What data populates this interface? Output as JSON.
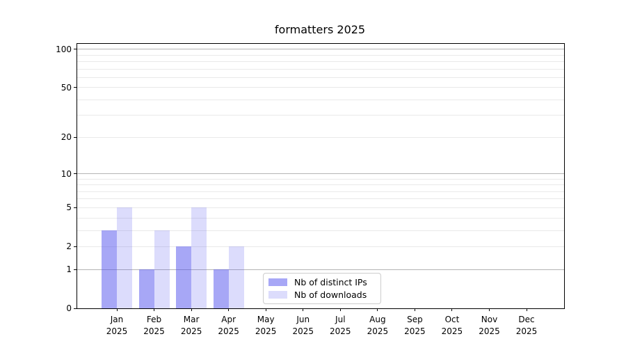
{
  "title": "formatters 2025",
  "colors": {
    "background": "#ffffff",
    "spine": "#000000",
    "text": "#000000",
    "grid_major": "#b4b4b4",
    "grid_minor": "#e9e9e9",
    "legend_border": "#cccccc",
    "bar_ips_fill": "rgba(80,80,238,0.5)",
    "bar_downloads_fill": "rgba(80,80,238,0.2)"
  },
  "chart_data": {
    "type": "bar",
    "title": "formatters 2025",
    "categories": [
      "Jan",
      "Feb",
      "Mar",
      "Apr",
      "May",
      "Jun",
      "Jul",
      "Aug",
      "Sep",
      "Oct",
      "Nov",
      "Dec"
    ],
    "x_year": "2025",
    "series": [
      {
        "name": "Nb of distinct IPs",
        "color": "rgba(80,80,238,0.5)",
        "values": [
          3,
          1,
          2,
          1,
          0,
          0,
          0,
          0,
          0,
          0,
          0,
          0
        ]
      },
      {
        "name": "Nb of downloads",
        "color": "rgba(80,80,238,0.2)",
        "values": [
          5,
          3,
          5,
          2,
          0,
          0,
          0,
          0,
          0,
          0,
          0,
          0
        ]
      }
    ],
    "xlabel": "",
    "ylabel": "",
    "yscale": "log10(1+v)",
    "ylim": [
      0,
      110
    ],
    "yticks_labeled": [
      0,
      1,
      2,
      5,
      10,
      20,
      50,
      100
    ],
    "gridlines_major": [
      1,
      10,
      100
    ],
    "gridlines_minor": [
      2,
      3,
      4,
      5,
      6,
      7,
      8,
      9,
      20,
      30,
      40,
      50,
      60,
      70,
      80,
      90
    ],
    "grid": "horizontal",
    "legend_position": "lower center"
  }
}
